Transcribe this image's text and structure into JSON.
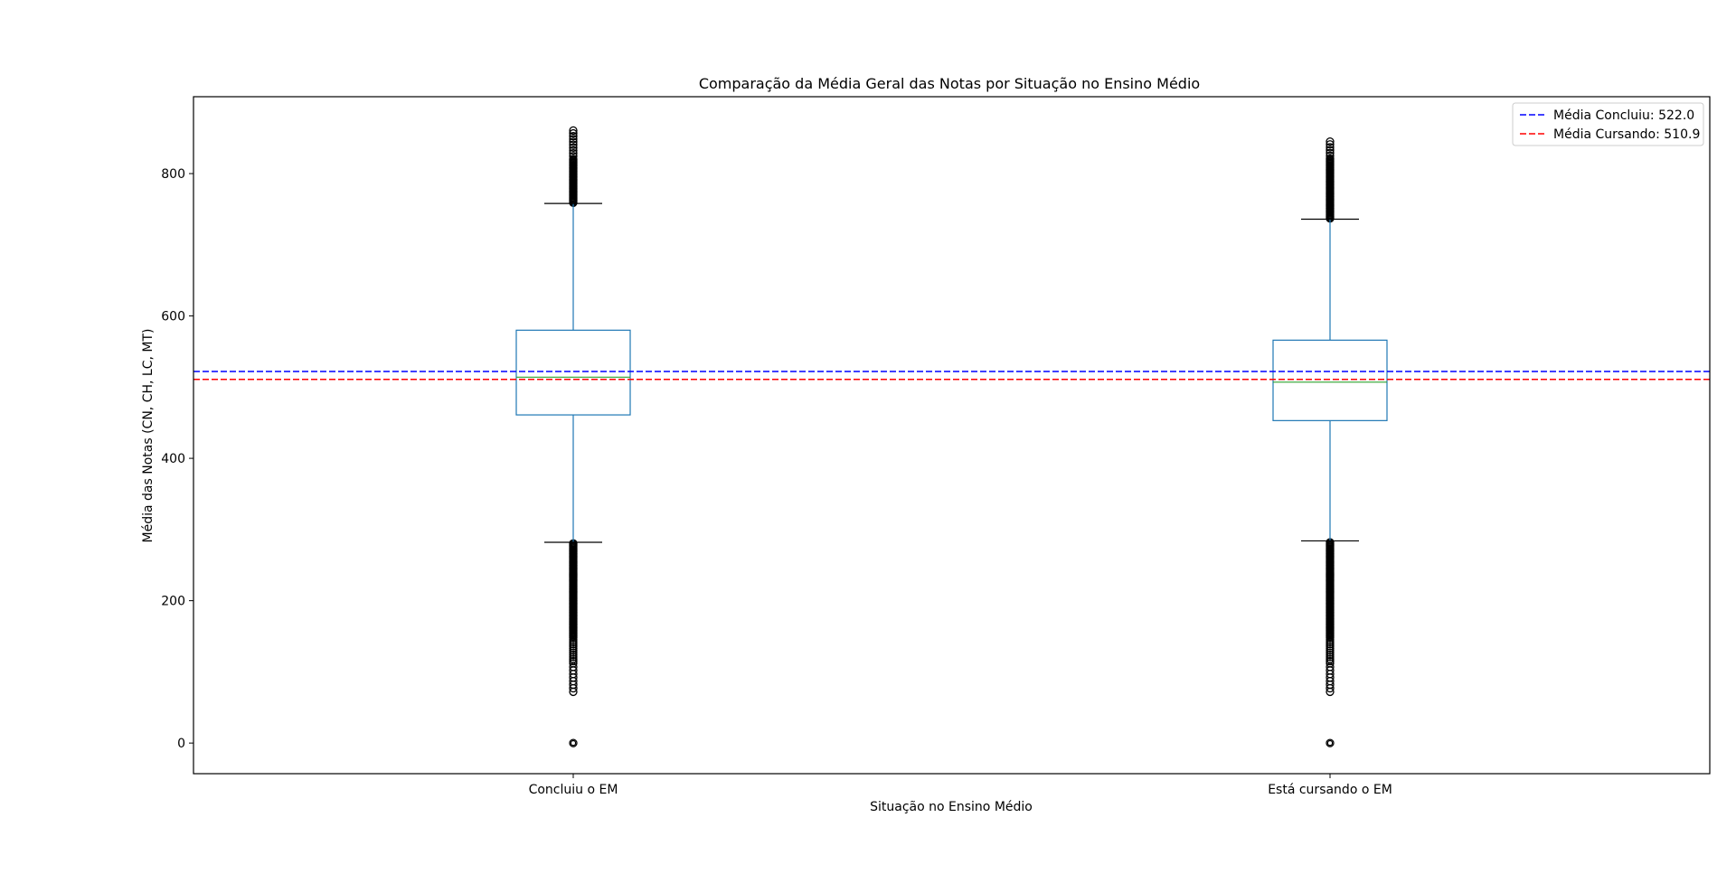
{
  "chart_data": {
    "type": "box",
    "title": "Comparação da Média Geral das Notas por Situação no Ensino Médio",
    "xlabel": "Situação no Ensino Médio",
    "ylabel": "Média das Notas (CN, CH, LC, MT)",
    "categories": [
      "Concluiu o EM",
      "Está cursando o EM"
    ],
    "ylim": [
      -43,
      908
    ],
    "yticks": [
      0,
      200,
      400,
      600,
      800
    ],
    "boxes": [
      {
        "category": "Concluiu o EM",
        "whisker_low": 282,
        "q1": 461,
        "median": 514,
        "q3": 580,
        "whisker_high": 758,
        "outliers_low_range": [
          72,
          281
        ],
        "outliers_high_range": [
          759,
          864
        ],
        "outliers_zero": 0
      },
      {
        "category": "Está cursando o EM",
        "whisker_low": 284,
        "q1": 453,
        "median": 507,
        "q3": 566,
        "whisker_high": 736,
        "outliers_low_range": [
          72,
          283
        ],
        "outliers_high_range": [
          737,
          848
        ],
        "outliers_zero": 0
      }
    ],
    "reference_lines": [
      {
        "label": "Média Concluiu: 522.0",
        "value": 522.0,
        "color": "#0000ff"
      },
      {
        "label": "Média Cursando: 510.9",
        "value": 510.9,
        "color": "#ff0000"
      }
    ],
    "legend_placement": "top-right",
    "colors": {
      "box": "#1f77b4",
      "median": "#2ca02c",
      "cap": "#000000",
      "flier": "#000000"
    },
    "grid": false
  }
}
